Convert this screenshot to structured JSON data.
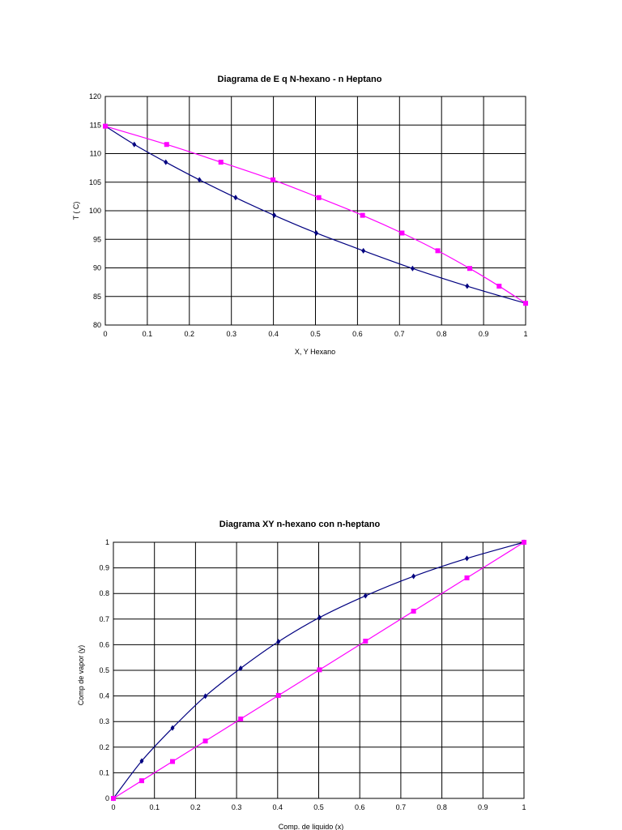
{
  "chart_data": [
    {
      "type": "line",
      "title": "Diagrama de E q N-hexano - n Heptano",
      "xlabel": "X, Y Hexano",
      "ylabel": "T ( C)",
      "xlim": [
        0,
        1
      ],
      "ylim": [
        80,
        120
      ],
      "x_ticks": [
        "0",
        "0.1",
        "0.2",
        "0.3",
        "0.4",
        "0.5",
        "0.6",
        "0.7",
        "0.8",
        "0.9",
        "1"
      ],
      "y_ticks": [
        "80",
        "85",
        "90",
        "95",
        "100",
        "105",
        "110",
        "115",
        "120"
      ],
      "grid": true,
      "series": [
        {
          "color": "#000080",
          "marker": "diamond",
          "x": [
            0,
            0.069,
            0.144,
            0.224,
            0.31,
            0.402,
            0.502,
            0.614,
            0.731,
            0.861,
            1.0
          ],
          "y": [
            114.8,
            111.6,
            108.5,
            105.4,
            102.3,
            99.2,
            96.1,
            93.0,
            89.9,
            86.8,
            83.8
          ]
        },
        {
          "color": "#ff00ff",
          "marker": "square",
          "x": [
            0,
            0.146,
            0.275,
            0.399,
            0.508,
            0.612,
            0.706,
            0.791,
            0.867,
            0.937,
            1.0
          ],
          "y": [
            114.8,
            111.6,
            108.5,
            105.4,
            102.3,
            99.2,
            96.1,
            93.0,
            89.9,
            86.8,
            83.8
          ]
        }
      ]
    },
    {
      "type": "line",
      "title": "Diagrama XY n-hexano con n-heptano",
      "xlabel": "Comp. de liquido (x)",
      "ylabel": "Comp de vapor (y)",
      "xlim": [
        0,
        1
      ],
      "ylim": [
        0,
        1
      ],
      "x_ticks": [
        "0",
        "0.1",
        "0.2",
        "0.3",
        "0.4",
        "0.5",
        "0.6",
        "0.7",
        "0.8",
        "0.9",
        "1"
      ],
      "y_ticks": [
        "0",
        "0.1",
        "0.2",
        "0.3",
        "0.4",
        "0.5",
        "0.6",
        "0.7",
        "0.8",
        "0.9",
        "1"
      ],
      "grid": true,
      "series": [
        {
          "color": "#000080",
          "marker": "diamond",
          "x": [
            0,
            0.069,
            0.144,
            0.224,
            0.31,
            0.402,
            0.502,
            0.614,
            0.731,
            0.861,
            1.0
          ],
          "y": [
            0,
            0.146,
            0.275,
            0.399,
            0.508,
            0.612,
            0.706,
            0.791,
            0.867,
            0.937,
            1.0
          ]
        },
        {
          "color": "#ff00ff",
          "marker": "square",
          "x": [
            0,
            0.069,
            0.144,
            0.224,
            0.31,
            0.402,
            0.502,
            0.614,
            0.731,
            0.861,
            1.0
          ],
          "y": [
            0,
            0.069,
            0.144,
            0.224,
            0.31,
            0.402,
            0.502,
            0.614,
            0.731,
            0.861,
            1.0
          ]
        }
      ]
    }
  ]
}
